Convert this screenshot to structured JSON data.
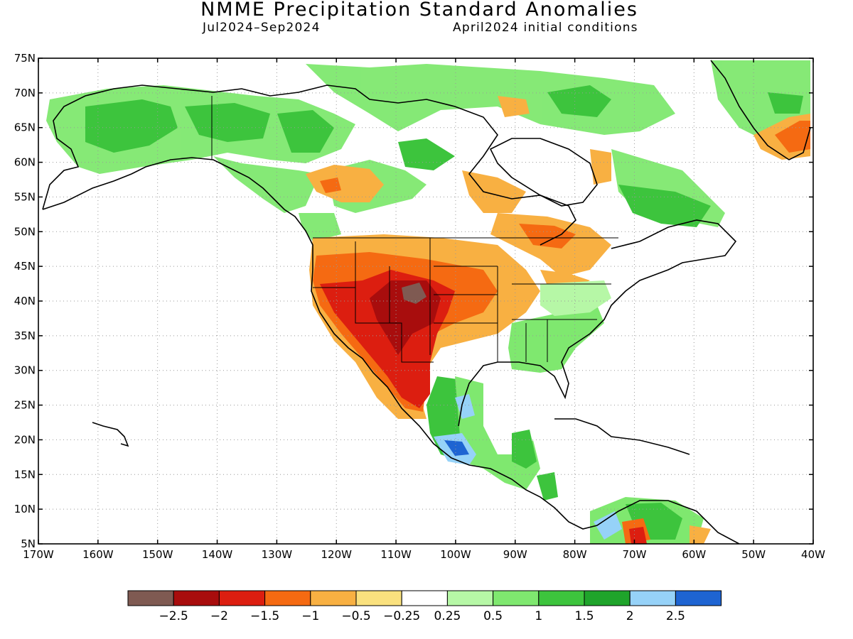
{
  "title": "NMME Precipitation Standard Anomalies",
  "period": "Jul2024–Sep2024",
  "init": "April2024 initial conditions",
  "axes": {
    "lon_labels": [
      "170W",
      "160W",
      "150W",
      "140W",
      "130W",
      "120W",
      "110W",
      "100W",
      "90W",
      "80W",
      "70W",
      "60W",
      "50W",
      "40W"
    ],
    "lat_labels": [
      "75N",
      "70N",
      "65N",
      "60N",
      "55N",
      "50N",
      "45N",
      "40N",
      "35N",
      "30N",
      "25N",
      "20N",
      "15N",
      "10N",
      "5N"
    ]
  },
  "colorbar": {
    "colors": [
      "#7f5a52",
      "#a80d0d",
      "#dc1e10",
      "#f56a12",
      "#f8b042",
      "#fae17e",
      "#ffffff",
      "#b6f7a6",
      "#7fe86f",
      "#3dc43d",
      "#1fa42b",
      "#96d2f8",
      "#1e64d2"
    ],
    "labels": [
      "−2.5",
      "−2",
      "−1.5",
      "−1",
      "−0.5",
      "−0.25",
      "0.25",
      "0.5",
      "1",
      "1.5",
      "2",
      "2.5"
    ]
  },
  "colors": {
    "frame": "#000000",
    "grid": "#999999",
    "coast": "#000000"
  }
}
